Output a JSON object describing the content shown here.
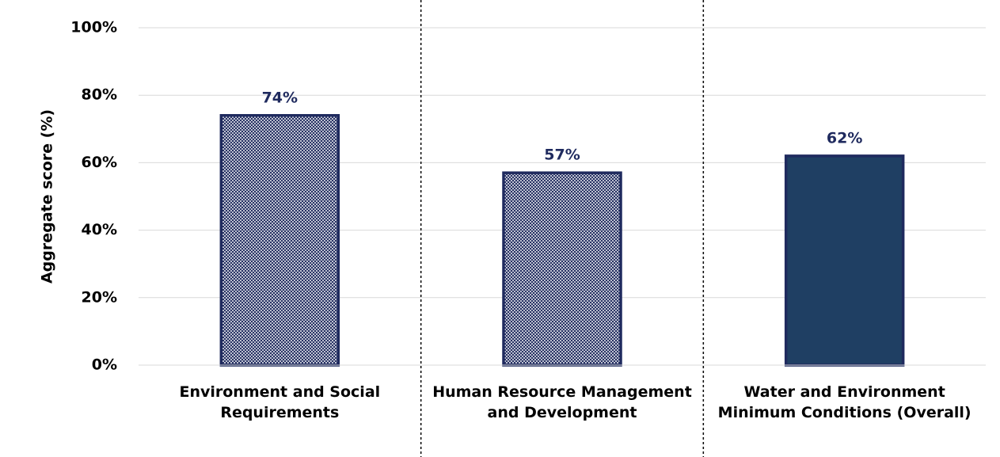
{
  "chart_data": {
    "type": "bar",
    "y_label": "Aggregate score (%)",
    "categories": [
      "Environment and Social Requirements",
      "Human Resource Management and Development",
      "Water and Environment Minimum Conditions (Overall)"
    ],
    "values": [
      74,
      57,
      62
    ],
    "value_labels": [
      "74%",
      "57%",
      "62%"
    ],
    "bar_fill": [
      "hatch",
      "hatch",
      "solid"
    ],
    "bar_color": "#1f2a5e",
    "solid_color": "#1f3f63",
    "label_color": "#1f2a5e",
    "ylim": [
      0,
      100
    ],
    "yticks": [
      {
        "value": 0,
        "label": "0%"
      },
      {
        "value": 20,
        "label": "20%"
      },
      {
        "value": 40,
        "label": "40%"
      },
      {
        "value": 60,
        "label": "60%"
      },
      {
        "value": 80,
        "label": "80%"
      },
      {
        "value": 100,
        "label": "100%"
      }
    ],
    "grid": true
  }
}
